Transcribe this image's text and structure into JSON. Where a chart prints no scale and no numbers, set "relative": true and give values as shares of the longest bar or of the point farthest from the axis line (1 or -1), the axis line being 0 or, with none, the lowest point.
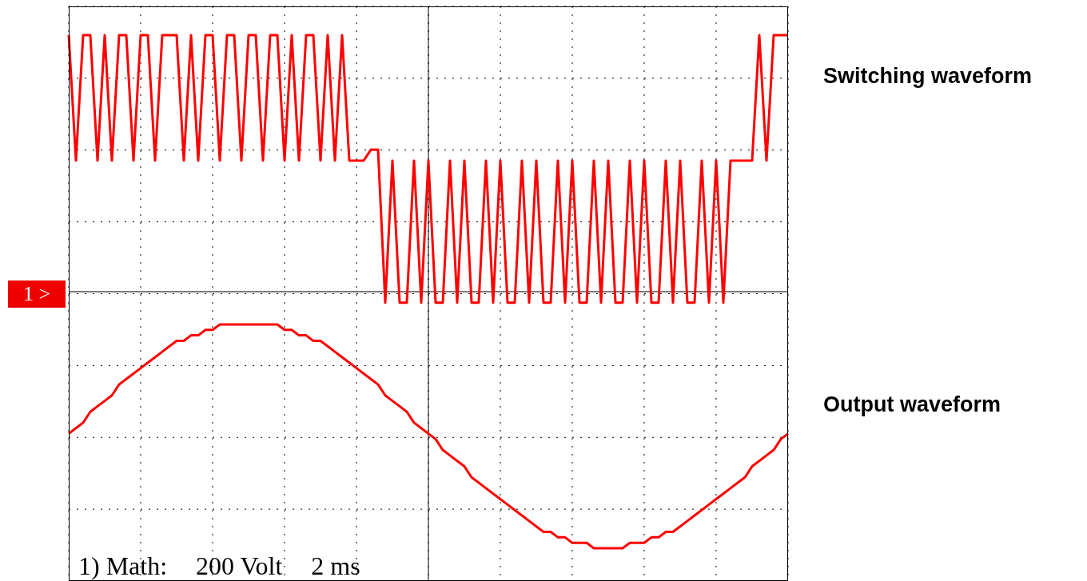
{
  "chart_data": {
    "type": "line",
    "relative": true,
    "grid": true,
    "annotations": [
      "1 >",
      "1) Math:",
      "200 Volt",
      "2 ms"
    ],
    "ref_lines": [
      {
        "axis": "y",
        "value": 0.53,
        "color": "#000000"
      }
    ],
    "categories": [
      null,
      null,
      null,
      null,
      null,
      null,
      null,
      null,
      null,
      null,
      null,
      null,
      null,
      null,
      null,
      null,
      null,
      null,
      null,
      null,
      null,
      null,
      null,
      null,
      null,
      null,
      null,
      null,
      null,
      null,
      null,
      null,
      null,
      null,
      null,
      null,
      null,
      null,
      null,
      null,
      null,
      null,
      null,
      null,
      null,
      null,
      null,
      null,
      null,
      null,
      null,
      null,
      null,
      null,
      null,
      null,
      null,
      null,
      null,
      null,
      null,
      null,
      null,
      null,
      null,
      null,
      null,
      null,
      null,
      null,
      null,
      null,
      null,
      null,
      null,
      null,
      null,
      null,
      null,
      null,
      null,
      null,
      null,
      null,
      null,
      null,
      null,
      null,
      null,
      null,
      null,
      null,
      null,
      null,
      null,
      null,
      null,
      null,
      null,
      null,
      null
    ],
    "series": [
      {
        "name": "Switching waveform",
        "color": "#ff0000",
        "values": [
          1,
          0.77,
          1,
          1,
          0.77,
          1,
          0.77,
          1,
          1,
          0.77,
          1,
          1,
          0.77,
          1,
          1,
          1,
          0.77,
          1,
          0.77,
          1,
          1,
          0.77,
          1,
          1,
          0.77,
          1,
          1,
          0.77,
          1,
          1,
          0.77,
          1,
          0.77,
          1,
          1,
          0.77,
          1,
          0.77,
          1,
          0.77,
          0.77,
          0.77,
          0.79,
          0.79,
          0.51,
          0.77,
          0.51,
          0.51,
          0.77,
          0.51,
          0.77,
          0.51,
          0.51,
          0.77,
          0.51,
          0.77,
          0.51,
          0.51,
          0.77,
          0.51,
          0.77,
          0.51,
          0.51,
          0.77,
          0.51,
          0.77,
          0.51,
          0.51,
          0.77,
          0.51,
          0.77,
          0.51,
          0.51,
          0.77,
          0.51,
          0.77,
          0.51,
          0.51,
          0.77,
          0.51,
          0.77,
          0.51,
          0.51,
          0.77,
          0.51,
          0.77,
          0.51,
          0.51,
          0.77,
          0.51,
          0.77,
          0.51,
          0.77,
          0.77,
          0.77,
          0.77,
          1,
          0.77,
          1,
          1,
          1
        ]
      },
      {
        "name": "Output waveform",
        "color": "#ff0000",
        "values": [
          0.27,
          0.28,
          0.29,
          0.31,
          0.32,
          0.33,
          0.34,
          0.36,
          0.37,
          0.38,
          0.39,
          0.4,
          0.41,
          0.42,
          0.43,
          0.44,
          0.44,
          0.45,
          0.45,
          0.46,
          0.46,
          0.47,
          0.47,
          0.47,
          0.47,
          0.47,
          0.47,
          0.47,
          0.47,
          0.47,
          0.46,
          0.46,
          0.45,
          0.45,
          0.44,
          0.44,
          0.43,
          0.42,
          0.41,
          0.4,
          0.39,
          0.38,
          0.37,
          0.36,
          0.34,
          0.33,
          0.32,
          0.31,
          0.29,
          0.28,
          0.27,
          0.26,
          0.24,
          0.23,
          0.22,
          0.21,
          0.19,
          0.18,
          0.17,
          0.16,
          0.15,
          0.14,
          0.13,
          0.12,
          0.11,
          0.1,
          0.09,
          0.09,
          0.08,
          0.08,
          0.07,
          0.07,
          0.07,
          0.06,
          0.06,
          0.06,
          0.06,
          0.06,
          0.07,
          0.07,
          0.07,
          0.08,
          0.08,
          0.09,
          0.09,
          0.1,
          0.11,
          0.12,
          0.13,
          0.14,
          0.15,
          0.16,
          0.17,
          0.18,
          0.19,
          0.21,
          0.22,
          0.23,
          0.24,
          0.26,
          0.27
        ]
      }
    ]
  }
}
